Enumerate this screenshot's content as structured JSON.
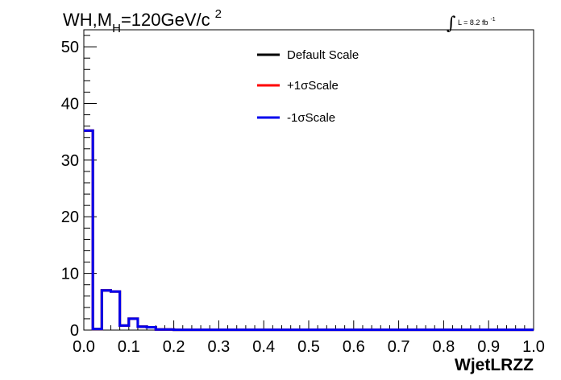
{
  "title": {
    "prefix": "WH,M",
    "subscript": "H",
    "rest": "=120GeV/c",
    "superscript": "2"
  },
  "luminosity": {
    "integral_symbol": "∫",
    "text": "L = 8.2 fb",
    "exponent": "-1"
  },
  "chart_data": {
    "type": "step-histogram",
    "xlabel": "WjetLRZZ",
    "ylabel": "",
    "xlim": [
      0.0,
      1.0
    ],
    "ylim": [
      0,
      53
    ],
    "x_ticks": [
      "0.0",
      "0.1",
      "0.2",
      "0.3",
      "0.4",
      "0.5",
      "0.6",
      "0.7",
      "0.8",
      "0.9",
      "1.0"
    ],
    "y_ticks": [
      "0",
      "10",
      "20",
      "30",
      "40",
      "50"
    ],
    "bin_edges": [
      0.0,
      0.02,
      0.04,
      0.06,
      0.08,
      0.1,
      0.12,
      0.14,
      0.16,
      0.18,
      0.2,
      1.0
    ],
    "legend_position": "top-center",
    "series": [
      {
        "name": "Default Scale",
        "color": "#000000",
        "values": [
          35.2,
          0.2,
          7.0,
          6.8,
          0.8,
          2.0,
          0.6,
          0.5,
          0.1,
          0.1,
          0.05
        ]
      },
      {
        "name": "+1σScale",
        "color": "#ff0000",
        "values": [
          35.2,
          0.2,
          7.0,
          6.8,
          0.8,
          2.0,
          0.6,
          0.5,
          0.1,
          0.1,
          0.05
        ]
      },
      {
        "name": "-1σScale",
        "color": "#0000ee",
        "values": [
          35.2,
          0.2,
          7.0,
          6.8,
          0.8,
          2.0,
          0.6,
          0.5,
          0.1,
          0.1,
          0.05
        ]
      }
    ]
  }
}
